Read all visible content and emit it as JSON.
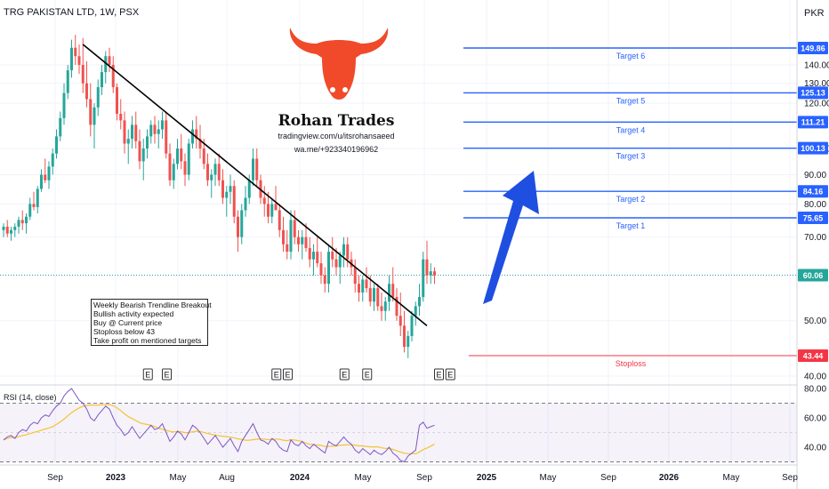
{
  "header": {
    "symbol_title": "TRG PAKISTAN LTD, 1W, PSX",
    "currency": "PKR"
  },
  "brand": {
    "name": "Rohan Trades",
    "url": "tradingview.com/u/itsrohansaeed",
    "whatsapp": "wa.me/+923340196962",
    "logo_color": "#f04a2a"
  },
  "note": {
    "lines": [
      "Weekly Bearish Trendline Breakout",
      "Bullish activity expected",
      "Buy @ Current price",
      "Stoploss below 43",
      "Take profit on mentioned targets"
    ]
  },
  "earnings_marker": "E",
  "rsi": {
    "label": "RSI (14, close)",
    "ticks": [
      "80.00",
      "60.00",
      "40.00"
    ],
    "tick_values": [
      80,
      60,
      40
    ],
    "bands": [
      70,
      30
    ],
    "midline": 50
  },
  "colors": {
    "up": "#26a69a",
    "down": "#ef5350",
    "target": "#2962ff",
    "stop": "#f23645",
    "arrow": "#1f4fe0",
    "rsi_line": "#7e57c2",
    "rsi_ma": "#f4c430"
  },
  "chart_data": {
    "type": "candlestick",
    "title": "TRG PAKISTAN LTD, 1W, PSX",
    "y_scale": "log",
    "ylim": [
      38,
      165
    ],
    "y_ticks": [
      "140.00",
      "130.00",
      "120.00",
      "100.00",
      "90.00",
      "80.00",
      "70.00",
      "50.00",
      "40.00"
    ],
    "y_tick_values": [
      140,
      130,
      120,
      100,
      90,
      80,
      70,
      50,
      40
    ],
    "x_ticks": [
      "Sep",
      "2023",
      "May",
      "Aug",
      "2024",
      "May",
      "Sep",
      "2025",
      "May",
      "Sep",
      "2026",
      "May",
      "Sep"
    ],
    "bold_x_ticks": [
      "2023",
      "2024",
      "2025",
      "2026"
    ],
    "current_price": {
      "value": 60.06,
      "label": "60.06"
    },
    "levels": [
      {
        "name": "Target 6",
        "value": 149.86,
        "label": "149.86",
        "kind": "target"
      },
      {
        "name": "Target 5",
        "value": 125.13,
        "label": "125.13",
        "kind": "target"
      },
      {
        "name": "Target 4",
        "value": 111.21,
        "label": "111.21",
        "kind": "target"
      },
      {
        "name": "Target 3",
        "value": 100.13,
        "label": "100.13",
        "kind": "target"
      },
      {
        "name": "Target 2",
        "value": 84.16,
        "label": "84.16",
        "kind": "target"
      },
      {
        "name": "Target 1",
        "value": 75.65,
        "label": "75.65",
        "kind": "target"
      },
      {
        "name": "Stoploss",
        "value": 43.44,
        "label": "43.44",
        "kind": "stop"
      }
    ],
    "trendline": {
      "start": {
        "bar": 21,
        "value": 152
      },
      "end": {
        "bar": 112,
        "value": 49
      }
    },
    "candles": [
      [
        72,
        74,
        70,
        73
      ],
      [
        73,
        75,
        70,
        71
      ],
      [
        71,
        73,
        69,
        72
      ],
      [
        72,
        74,
        70,
        73
      ],
      [
        73,
        76,
        71,
        75
      ],
      [
        75,
        78,
        72,
        74
      ],
      [
        74,
        77,
        71,
        76
      ],
      [
        76,
        82,
        75,
        80
      ],
      [
        80,
        84,
        78,
        79
      ],
      [
        79,
        86,
        77,
        85
      ],
      [
        85,
        92,
        84,
        90
      ],
      [
        90,
        96,
        87,
        88
      ],
      [
        88,
        95,
        85,
        93
      ],
      [
        93,
        100,
        90,
        98
      ],
      [
        98,
        108,
        96,
        105
      ],
      [
        105,
        116,
        103,
        113
      ],
      [
        113,
        130,
        110,
        125
      ],
      [
        125,
        140,
        122,
        137
      ],
      [
        137,
        155,
        133,
        150
      ],
      [
        150,
        158,
        140,
        145
      ],
      [
        145,
        152,
        135,
        140
      ],
      [
        140,
        156,
        125,
        130
      ],
      [
        130,
        142,
        118,
        122
      ],
      [
        122,
        130,
        105,
        110
      ],
      [
        110,
        120,
        100,
        118
      ],
      [
        118,
        132,
        114,
        128
      ],
      [
        128,
        140,
        124,
        136
      ],
      [
        136,
        148,
        130,
        145
      ],
      [
        145,
        150,
        136,
        140
      ],
      [
        140,
        145,
        125,
        128
      ],
      [
        128,
        130,
        112,
        115
      ],
      [
        115,
        122,
        108,
        112
      ],
      [
        112,
        116,
        98,
        102
      ],
      [
        102,
        108,
        94,
        104
      ],
      [
        104,
        114,
        100,
        110
      ],
      [
        110,
        116,
        100,
        103
      ],
      [
        103,
        108,
        92,
        95
      ],
      [
        95,
        104,
        88,
        100
      ],
      [
        100,
        108,
        96,
        105
      ],
      [
        105,
        112,
        102,
        110
      ],
      [
        110,
        114,
        102,
        106
      ],
      [
        106,
        112,
        100,
        108
      ],
      [
        108,
        116,
        104,
        112
      ],
      [
        112,
        116,
        96,
        98
      ],
      [
        98,
        102,
        86,
        88
      ],
      [
        88,
        96,
        85,
        94
      ],
      [
        94,
        104,
        92,
        100
      ],
      [
        100,
        106,
        92,
        95
      ],
      [
        95,
        98,
        86,
        90
      ],
      [
        90,
        104,
        88,
        102
      ],
      [
        102,
        112,
        100,
        108
      ],
      [
        108,
        114,
        100,
        104
      ],
      [
        104,
        110,
        96,
        100
      ],
      [
        100,
        104,
        92,
        94
      ],
      [
        94,
        98,
        86,
        88
      ],
      [
        88,
        92,
        82,
        90
      ],
      [
        90,
        96,
        86,
        94
      ],
      [
        94,
        98,
        86,
        88
      ],
      [
        88,
        92,
        80,
        82
      ],
      [
        82,
        86,
        76,
        84
      ],
      [
        84,
        90,
        80,
        86
      ],
      [
        86,
        88,
        74,
        76
      ],
      [
        76,
        78,
        66,
        70
      ],
      [
        70,
        80,
        68,
        78
      ],
      [
        78,
        86,
        76,
        82
      ],
      [
        82,
        90,
        80,
        88
      ],
      [
        88,
        100,
        86,
        96
      ],
      [
        96,
        100,
        86,
        88
      ],
      [
        88,
        90,
        80,
        82
      ],
      [
        82,
        86,
        76,
        80
      ],
      [
        80,
        84,
        74,
        76
      ],
      [
        76,
        82,
        74,
        80
      ],
      [
        80,
        86,
        78,
        78
      ],
      [
        78,
        80,
        70,
        72
      ],
      [
        72,
        76,
        66,
        68
      ],
      [
        68,
        72,
        64,
        66
      ],
      [
        66,
        78,
        64,
        75
      ],
      [
        75,
        78,
        68,
        70
      ],
      [
        70,
        72,
        66,
        68
      ],
      [
        68,
        72,
        64,
        70
      ],
      [
        70,
        74,
        66,
        67
      ],
      [
        67,
        70,
        62,
        64
      ],
      [
        64,
        68,
        60,
        66
      ],
      [
        66,
        70,
        62,
        63
      ],
      [
        63,
        66,
        58,
        60
      ],
      [
        60,
        62,
        56,
        58
      ],
      [
        58,
        68,
        56,
        66
      ],
      [
        66,
        70,
        62,
        64
      ],
      [
        64,
        67,
        60,
        62
      ],
      [
        62,
        66,
        58,
        65
      ],
      [
        65,
        70,
        62,
        68
      ],
      [
        68,
        70,
        62,
        64
      ],
      [
        64,
        66,
        60,
        62
      ],
      [
        62,
        64,
        56,
        58
      ],
      [
        58,
        60,
        54,
        56
      ],
      [
        56,
        60,
        54,
        59
      ],
      [
        59,
        62,
        56,
        57
      ],
      [
        57,
        60,
        53,
        54
      ],
      [
        54,
        58,
        52,
        57
      ],
      [
        57,
        58,
        52,
        53
      ],
      [
        53,
        56,
        50,
        52
      ],
      [
        52,
        55,
        50,
        54
      ],
      [
        54,
        60,
        52,
        58
      ],
      [
        58,
        62,
        54,
        55
      ],
      [
        55,
        57,
        50,
        51
      ],
      [
        51,
        56,
        47,
        49
      ],
      [
        49,
        52,
        44,
        45
      ],
      [
        45,
        48,
        43,
        47
      ],
      [
        47,
        52,
        46,
        51
      ],
      [
        51,
        54,
        49,
        53
      ],
      [
        53,
        58,
        51,
        55
      ],
      [
        55,
        66,
        54,
        64
      ],
      [
        64,
        69,
        58,
        60
      ],
      [
        60,
        63,
        58,
        61
      ],
      [
        61,
        62,
        58,
        60
      ]
    ],
    "earnings_bars": [
      25,
      30,
      59,
      62,
      77,
      83,
      102,
      105
    ],
    "rsi_values": [
      45,
      47,
      48,
      46,
      50,
      52,
      51,
      55,
      57,
      56,
      60,
      62,
      61,
      65,
      68,
      70,
      75,
      78,
      80,
      76,
      72,
      70,
      66,
      60,
      58,
      62,
      65,
      68,
      66,
      60,
      55,
      52,
      48,
      50,
      54,
      50,
      46,
      49,
      52,
      55,
      52,
      53,
      56,
      50,
      44,
      47,
      51,
      49,
      45,
      50,
      55,
      53,
      50,
      46,
      42,
      45,
      48,
      44,
      40,
      43,
      46,
      41,
      37,
      44,
      48,
      52,
      56,
      50,
      45,
      44,
      42,
      46,
      44,
      40,
      38,
      37,
      45,
      42,
      41,
      44,
      41,
      39,
      42,
      40,
      38,
      36,
      44,
      42,
      41,
      44,
      47,
      44,
      42,
      38,
      36,
      39,
      37,
      35,
      38,
      36,
      35,
      37,
      40,
      36,
      34,
      31,
      30,
      34,
      36,
      38,
      55,
      57,
      53,
      54,
      55
    ]
  }
}
